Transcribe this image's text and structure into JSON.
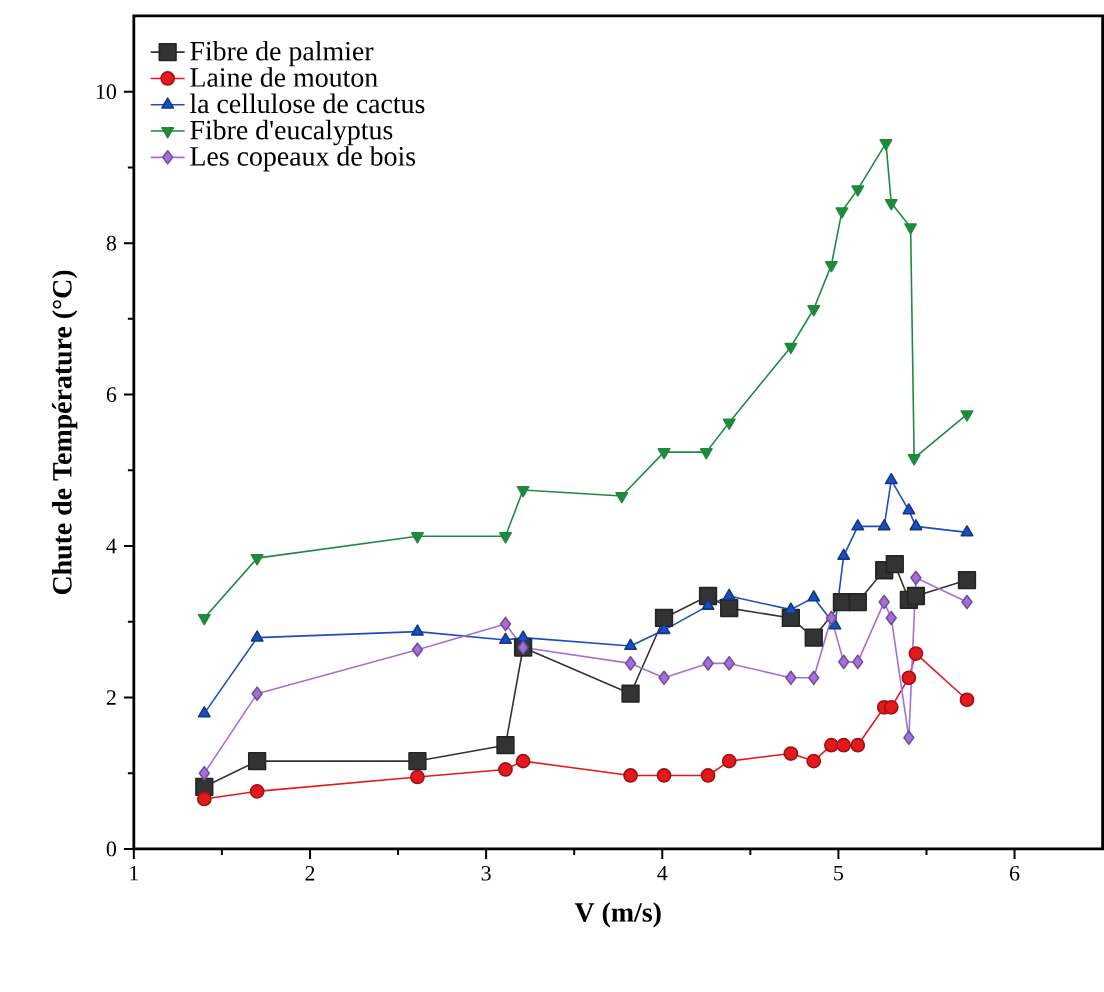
{
  "chart_data": {
    "type": "line",
    "xlabel": "V (m/s)",
    "ylabel": "Chute de Température (°C)",
    "xlim": [
      1,
      6.5
    ],
    "xticks": [
      1,
      2,
      3,
      4,
      5,
      6
    ],
    "ylim": [
      0,
      11
    ],
    "yticks": [
      0,
      2,
      4,
      6,
      8,
      10
    ],
    "grid": false,
    "legend": "top left",
    "series": [
      {
        "name": "Fibre de palmier",
        "color": "#333333",
        "marker": "square",
        "x": [
          1.4,
          1.7,
          2.61,
          3.11,
          3.21,
          3.82,
          4.01,
          4.26,
          4.38,
          4.73,
          4.86,
          5.02,
          5.11,
          5.26,
          5.32,
          5.4,
          5.44,
          5.73
        ],
        "values": [
          0.82,
          1.16,
          1.16,
          1.37,
          2.66,
          2.05,
          3.05,
          3.34,
          3.18,
          3.05,
          2.79,
          3.26,
          3.26,
          3.68,
          3.76,
          3.29,
          3.34,
          3.55
        ]
      },
      {
        "name": "Laine de mouton",
        "color": "#e3191c",
        "marker": "circle",
        "x": [
          1.4,
          1.7,
          2.61,
          3.11,
          3.21,
          3.82,
          4.01,
          4.26,
          4.38,
          4.73,
          4.86,
          4.96,
          5.03,
          5.11,
          5.26,
          5.3,
          5.4,
          5.44,
          5.73
        ],
        "values": [
          0.66,
          0.76,
          0.95,
          1.05,
          1.16,
          0.97,
          0.97,
          0.97,
          1.16,
          1.26,
          1.16,
          1.37,
          1.37,
          1.37,
          1.87,
          1.87,
          2.26,
          2.58,
          1.97
        ]
      },
      {
        "name": "la cellulose de cactus",
        "color": "#1a4fbf",
        "marker": "triangle",
        "x": [
          1.4,
          1.7,
          2.61,
          3.11,
          3.21,
          3.82,
          4.01,
          4.26,
          4.38,
          4.73,
          4.86,
          4.98,
          5.03,
          5.11,
          5.26,
          5.3,
          5.4,
          5.44,
          5.73
        ],
        "values": [
          1.79,
          2.79,
          2.87,
          2.76,
          2.79,
          2.68,
          2.89,
          3.21,
          3.34,
          3.16,
          3.32,
          2.95,
          3.87,
          4.26,
          4.26,
          4.87,
          4.47,
          4.26,
          4.18
        ]
      },
      {
        "name": "Fibre d'eucalyptus",
        "color": "#1f8a3f",
        "marker": "triangle_down",
        "x": [
          1.4,
          1.7,
          2.61,
          3.11,
          3.21,
          3.77,
          4.01,
          4.25,
          4.38,
          4.73,
          4.86,
          4.96,
          5.02,
          5.11,
          5.27,
          5.3,
          5.41,
          5.43,
          5.73
        ],
        "values": [
          3.05,
          3.84,
          4.13,
          4.13,
          4.74,
          4.66,
          5.24,
          5.24,
          5.63,
          6.63,
          7.13,
          7.71,
          8.42,
          8.71,
          9.32,
          8.53,
          8.21,
          5.16,
          5.74
        ]
      },
      {
        "name": "Les copeaux de bois",
        "color": "#a46fdb",
        "marker": "diamond",
        "x": [
          1.4,
          1.7,
          2.61,
          3.11,
          3.21,
          3.82,
          4.01,
          4.26,
          4.38,
          4.73,
          4.86,
          4.96,
          5.03,
          5.11,
          5.26,
          5.3,
          5.4,
          5.44,
          5.73
        ],
        "values": [
          1.0,
          2.05,
          2.63,
          2.97,
          2.66,
          2.45,
          2.26,
          2.45,
          2.45,
          2.26,
          2.26,
          3.05,
          2.47,
          2.47,
          3.26,
          3.05,
          1.47,
          3.58,
          3.26
        ]
      }
    ]
  }
}
